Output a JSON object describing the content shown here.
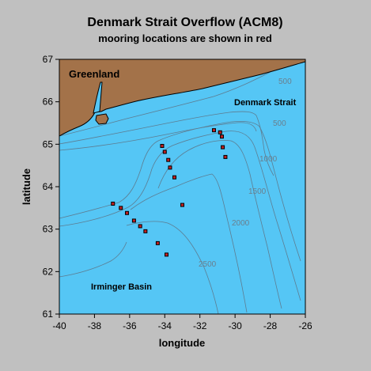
{
  "title": "Denmark Strait Overflow (ACM8)",
  "subtitle": "mooring locations are shown in red",
  "xlabel": "longitude",
  "ylabel": "latitude",
  "xlim": [
    -40,
    -26
  ],
  "ylim": [
    61,
    67
  ],
  "xticks": [
    -40,
    -38,
    -36,
    -34,
    -32,
    -30,
    -28,
    -26
  ],
  "yticks": [
    61,
    62,
    63,
    64,
    65,
    66,
    67
  ],
  "colors": {
    "ocean": "#55c6f5",
    "land": "#a37249",
    "mooring": "#c62020",
    "contour": "#5d7d92",
    "background": "#c0c0c0"
  },
  "labels": {
    "greenland": "Greenland",
    "denmark_strait": "Denmark Strait",
    "irminger_basin": "Irminger Basin"
  },
  "contour_labels": {
    "c500_top": "500",
    "c500": "500",
    "c1000": "1000",
    "c1500": "1500",
    "c2000": "2000",
    "c2500": "2500"
  },
  "chart_data": {
    "type": "scatter",
    "xlabel": "longitude",
    "ylabel": "latitude",
    "xlim": [
      -40,
      -26
    ],
    "ylim": [
      61,
      67
    ],
    "moorings": [
      {
        "lon": -31.2,
        "lat": 65.33
      },
      {
        "lon": -30.85,
        "lat": 65.28
      },
      {
        "lon": -30.75,
        "lat": 65.18
      },
      {
        "lon": -30.7,
        "lat": 64.93
      },
      {
        "lon": -30.55,
        "lat": 64.7
      },
      {
        "lon": -34.15,
        "lat": 64.96
      },
      {
        "lon": -34.0,
        "lat": 64.82
      },
      {
        "lon": -33.8,
        "lat": 64.63
      },
      {
        "lon": -33.7,
        "lat": 64.45
      },
      {
        "lon": -33.45,
        "lat": 64.22
      },
      {
        "lon": -33.0,
        "lat": 63.57
      },
      {
        "lon": -36.95,
        "lat": 63.6
      },
      {
        "lon": -36.5,
        "lat": 63.5
      },
      {
        "lon": -36.15,
        "lat": 63.38
      },
      {
        "lon": -35.75,
        "lat": 63.2
      },
      {
        "lon": -35.4,
        "lat": 63.07
      },
      {
        "lon": -35.1,
        "lat": 62.95
      },
      {
        "lon": -34.4,
        "lat": 62.67
      },
      {
        "lon": -33.9,
        "lat": 62.4
      }
    ]
  }
}
